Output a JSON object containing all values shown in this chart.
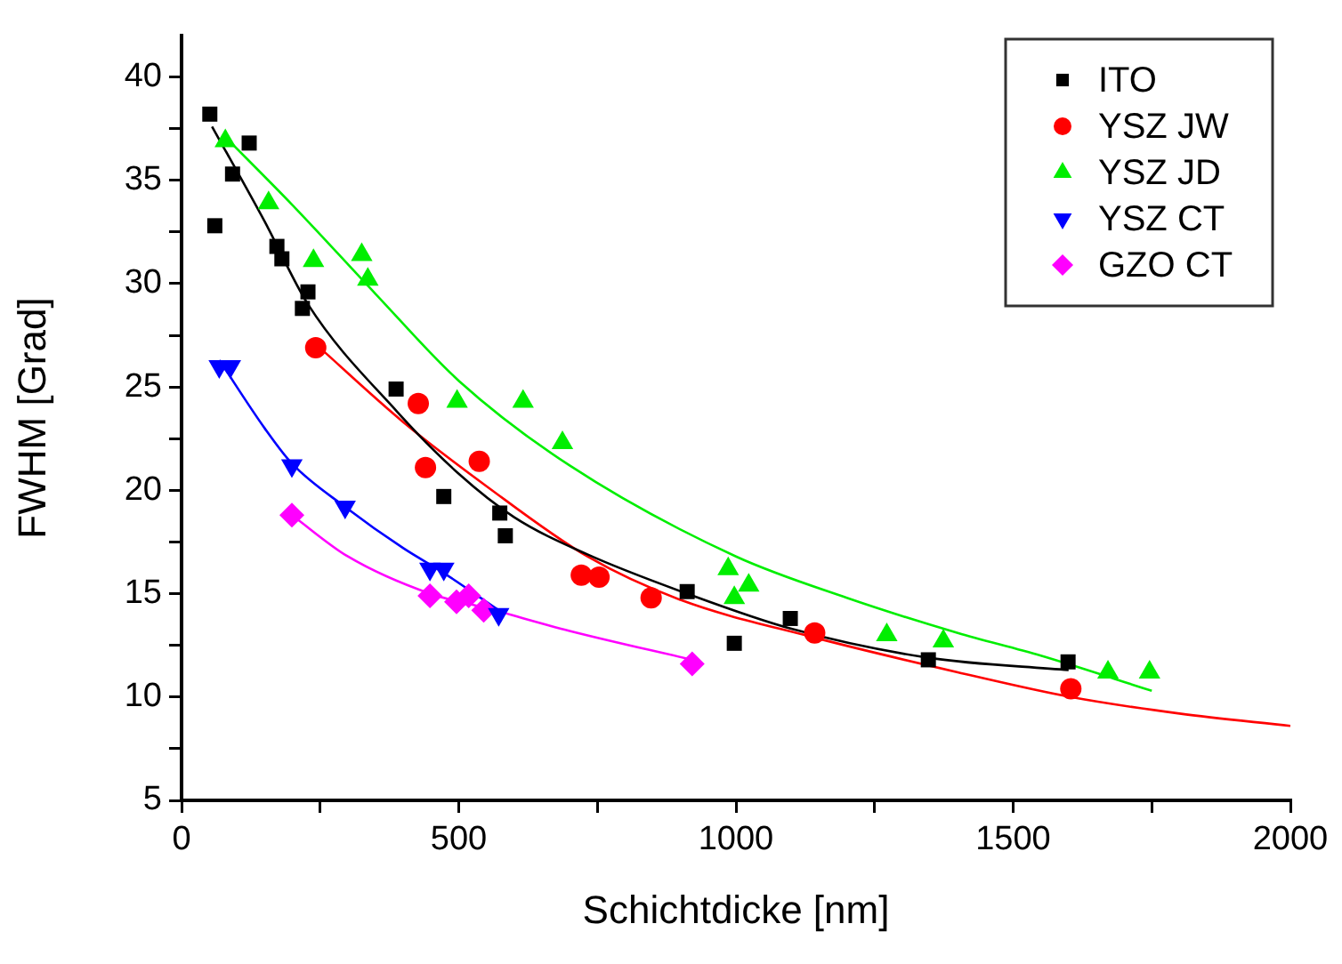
{
  "chart_data": {
    "type": "scatter",
    "xlabel": "Schichtdicke [nm]",
    "ylabel": "FWHM [Grad]",
    "xlim": [
      0,
      2000
    ],
    "ylim": [
      5,
      42
    ],
    "xticks": [
      0,
      {
        "value": 250,
        "label": null
      },
      500,
      {
        "value": 750,
        "label": null
      },
      1000,
      {
        "value": 1250,
        "label": null
      },
      1500,
      {
        "value": 1750,
        "label": null
      },
      2000
    ],
    "yticks": [
      5,
      {
        "value": 7.5,
        "label": null
      },
      10,
      {
        "value": 12.5,
        "label": null
      },
      15,
      {
        "value": 17.5,
        "label": null
      },
      20,
      {
        "value": 22.5,
        "label": null
      },
      25,
      {
        "value": 27.5,
        "label": null
      },
      30,
      {
        "value": 32.5,
        "label": null
      },
      35,
      {
        "value": 37.5,
        "label": null
      },
      40
    ],
    "grid": false,
    "legend": "top right",
    "series": [
      {
        "name": "ITO",
        "type": "scatter",
        "marker": "square",
        "color": "#000000",
        "x": [
          51,
          60,
          92,
          122,
          172,
          181,
          218,
          228,
          387,
          473,
          574,
          584,
          912,
          997,
          1098,
          1347,
          1599
        ],
        "values": [
          38.2,
          32.8,
          35.3,
          36.8,
          31.8,
          31.2,
          28.8,
          29.6,
          24.9,
          19.7,
          18.9,
          17.8,
          15.1,
          12.6,
          13.8,
          11.8,
          11.7
        ]
      },
      {
        "name": "YSZ JW",
        "type": "scatter",
        "marker": "circle",
        "color": "#ff0000",
        "x": [
          242,
          427,
          440,
          537,
          721,
          753,
          847,
          1142,
          1604
        ],
        "values": [
          26.9,
          24.2,
          21.1,
          21.4,
          15.9,
          15.8,
          14.8,
          13.1,
          10.4
        ]
      },
      {
        "name": "YSZ JD",
        "type": "scatter",
        "marker": "triangle",
        "color": "#00ee00",
        "x": [
          79,
          157,
          238,
          325,
          336,
          497,
          616,
          687,
          986,
          997,
          1023,
          1272,
          1374,
          1671,
          1746
        ],
        "values": [
          36.9,
          33.9,
          31.1,
          31.4,
          30.2,
          24.3,
          24.3,
          22.3,
          16.2,
          14.8,
          15.4,
          13.0,
          12.7,
          11.2,
          11.2
        ]
      },
      {
        "name": "YSZ CT",
        "type": "scatter",
        "marker": "triangle-down",
        "color": "#0000ff",
        "x": [
          68,
          88,
          199,
          295,
          448,
          473,
          572
        ],
        "values": [
          26.0,
          26.0,
          21.2,
          19.2,
          16.2,
          16.2,
          14.0
        ]
      },
      {
        "name": "GZO CT",
        "type": "scatter",
        "marker": "diamond",
        "color": "#ff00ff",
        "x": [
          199,
          448,
          496,
          518,
          545,
          921
        ],
        "values": [
          18.8,
          14.9,
          14.6,
          14.9,
          14.2,
          11.6
        ]
      },
      {
        "type": "line",
        "marker": "none",
        "color": "#000000",
        "x": [
          55,
          150,
          228,
          389,
          500,
          600,
          732,
          912,
          1100,
          1347,
          1600
        ],
        "values": [
          37.6,
          33,
          29,
          23.8,
          20.8,
          18.7,
          16.9,
          15,
          13.3,
          11.9,
          11.3
        ]
      },
      {
        "type": "line",
        "marker": "none",
        "color": "#ff0000",
        "x": [
          245,
          400,
          550,
          732,
          900,
          1138,
          1400,
          1604,
          1800,
          2000
        ],
        "values": [
          27,
          23.3,
          20.2,
          16.8,
          14.7,
          12.9,
          11.2,
          10,
          9.2,
          8.6
        ]
      },
      {
        "type": "line",
        "marker": "none",
        "color": "#00ee00",
        "x": [
          75,
          200,
          350,
          500,
          700,
          1000,
          1200,
          1400,
          1550,
          1750
        ],
        "values": [
          37.2,
          33.8,
          29.5,
          25.3,
          21.2,
          16.8,
          14.8,
          13.1,
          12.0,
          10.3
        ]
      },
      {
        "type": "line",
        "marker": "none",
        "color": "#0000ff",
        "x": [
          68,
          150,
          199,
          295,
          400,
          473,
          572
        ],
        "values": [
          26.3,
          23,
          21.3,
          19.2,
          17.2,
          16,
          14.2
        ]
      },
      {
        "type": "line",
        "marker": "none",
        "color": "#ff00ff",
        "x": [
          199,
          300,
          448,
          550,
          700,
          921
        ],
        "values": [
          18.8,
          16.8,
          15,
          14.3,
          13.2,
          11.8
        ]
      }
    ]
  }
}
